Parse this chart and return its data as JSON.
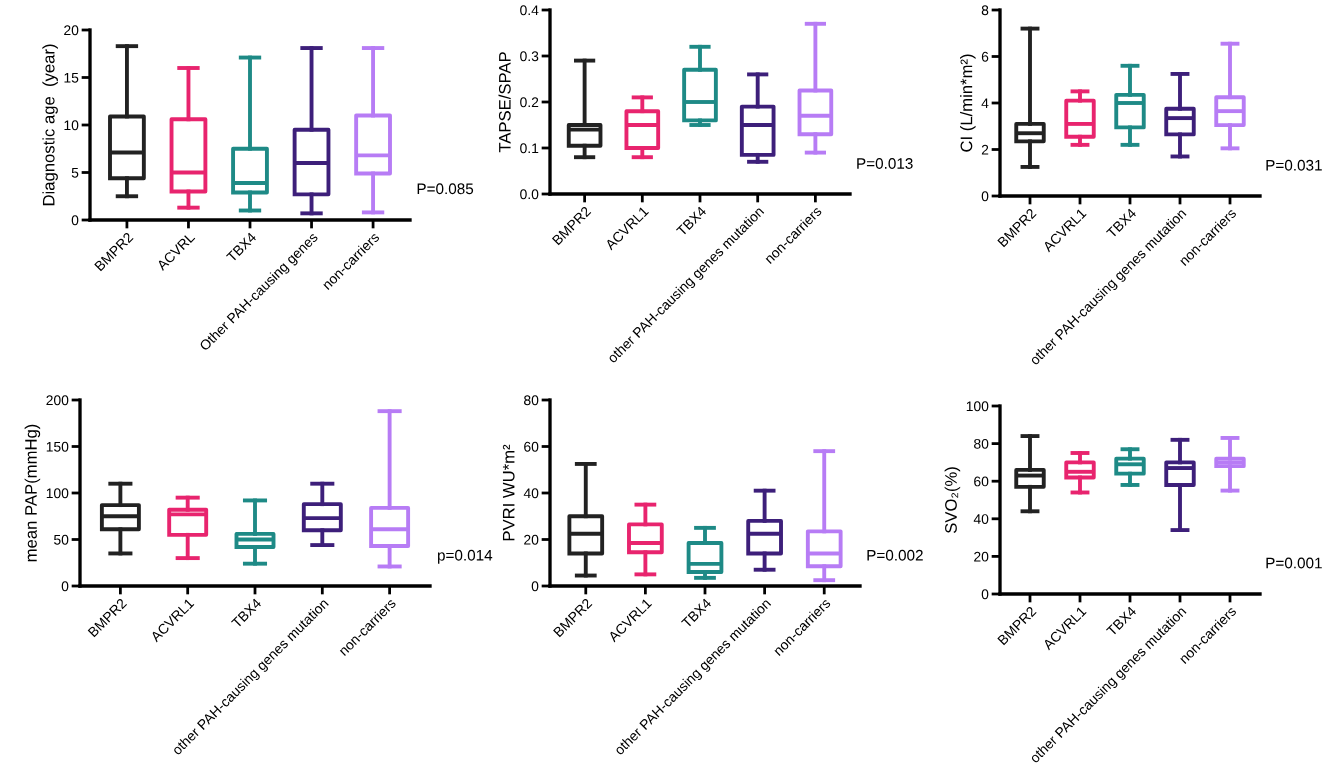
{
  "chart_data": [
    {
      "type": "box",
      "ylabel": "Diagnostic age  (year)",
      "categories": [
        "BMPR2",
        "ACVRL",
        "TBX4",
        "Other PAH-causing genes",
        "non-carriers"
      ],
      "colors": [
        "#222222",
        "#e8246e",
        "#1e8a86",
        "#3d1f7a",
        "#b77cf5"
      ],
      "ylim": [
        0,
        20
      ],
      "yticks": [
        0,
        5,
        10,
        15,
        20
      ],
      "annotations": [
        "P=0.085"
      ],
      "boxes": [
        {
          "low": 2.5,
          "q1": 4.4,
          "median": 7.1,
          "q3": 10.9,
          "high": 18.3
        },
        {
          "low": 1.3,
          "q1": 3.0,
          "median": 5.0,
          "q3": 10.6,
          "high": 16.0
        },
        {
          "low": 1.0,
          "q1": 2.9,
          "median": 3.9,
          "q3": 7.5,
          "high": 17.1
        },
        {
          "low": 0.7,
          "q1": 2.7,
          "median": 6.0,
          "q3": 9.5,
          "high": 18.1
        },
        {
          "low": 0.8,
          "q1": 4.9,
          "median": 6.8,
          "q3": 11.0,
          "high": 18.1
        }
      ]
    },
    {
      "type": "box",
      "ylabel": "TAPSE/SPAP",
      "categories": [
        "BMPR2",
        "ACVRL1",
        "TBX4",
        "other PAH-causing genes mutation",
        "non-carriers"
      ],
      "colors": [
        "#222222",
        "#e8246e",
        "#1e8a86",
        "#3d1f7a",
        "#b77cf5"
      ],
      "ylim": [
        0,
        0.4
      ],
      "yticks": [
        {
          "value": 0,
          "label": "0.0"
        },
        0.1,
        0.2,
        0.3,
        0.4
      ],
      "annotations": [
        "P=0.013"
      ],
      "boxes": [
        {
          "low": 0.08,
          "q1": 0.105,
          "median": 0.14,
          "q3": 0.15,
          "high": 0.29
        },
        {
          "low": 0.08,
          "q1": 0.1,
          "median": 0.15,
          "q3": 0.18,
          "high": 0.21
        },
        {
          "low": 0.15,
          "q1": 0.16,
          "median": 0.2,
          "q3": 0.27,
          "high": 0.32
        },
        {
          "low": 0.07,
          "q1": 0.085,
          "median": 0.15,
          "q3": 0.19,
          "high": 0.26
        },
        {
          "low": 0.09,
          "q1": 0.13,
          "median": 0.17,
          "q3": 0.225,
          "high": 0.37
        }
      ]
    },
    {
      "type": "box",
      "ylabel": "CI (L/min*m²)",
      "categories": [
        "BMPR2",
        "ACVRL1",
        "TBX4",
        "other PAH-causing genes mutation",
        "non-carriers"
      ],
      "colors": [
        "#222222",
        "#e8246e",
        "#1e8a86",
        "#3d1f7a",
        "#b77cf5"
      ],
      "ylim": [
        0,
        8
      ],
      "yticks": [
        0,
        2,
        4,
        6,
        8
      ],
      "annotations": [
        "P=0.031"
      ],
      "boxes": [
        {
          "low": 1.25,
          "q1": 2.35,
          "median": 2.7,
          "q3": 3.1,
          "high": 7.2
        },
        {
          "low": 2.2,
          "q1": 2.55,
          "median": 3.1,
          "q3": 4.1,
          "high": 4.5
        },
        {
          "low": 2.2,
          "q1": 2.95,
          "median": 4.0,
          "q3": 4.35,
          "high": 5.6
        },
        {
          "low": 1.7,
          "q1": 2.65,
          "median": 3.35,
          "q3": 3.75,
          "high": 5.25
        },
        {
          "low": 2.05,
          "q1": 3.05,
          "median": 3.65,
          "q3": 4.25,
          "high": 6.55
        }
      ]
    },
    {
      "type": "box",
      "ylabel": "mean PAP(mmHg)",
      "categories": [
        "BMPR2",
        "ACVRL1",
        "TBX4",
        "other PAH-causing genes mutation",
        "non-carriers"
      ],
      "colors": [
        "#222222",
        "#e8246e",
        "#1e8a86",
        "#3d1f7a",
        "#b77cf5"
      ],
      "ylim": [
        0,
        200
      ],
      "yticks": [
        0,
        50,
        100,
        150,
        200
      ],
      "annotations": [
        "p=0.014"
      ],
      "boxes": [
        {
          "low": 35,
          "q1": 61,
          "median": 75,
          "q3": 87,
          "high": 110
        },
        {
          "low": 30,
          "q1": 55,
          "median": 77,
          "q3": 82,
          "high": 95
        },
        {
          "low": 24,
          "q1": 42,
          "median": 50,
          "q3": 56,
          "high": 92
        },
        {
          "low": 44,
          "q1": 60,
          "median": 73,
          "q3": 88,
          "high": 110
        },
        {
          "low": 21,
          "q1": 43,
          "median": 61,
          "q3": 84,
          "high": 188
        }
      ]
    },
    {
      "type": "box",
      "ylabel": "PVRI WU*m²",
      "categories": [
        "BMPR2",
        "ACVRL1",
        "TBX4",
        "other PAH-causing genes mutation",
        "non-carriers"
      ],
      "colors": [
        "#222222",
        "#e8246e",
        "#1e8a86",
        "#3d1f7a",
        "#b77cf5"
      ],
      "ylim": [
        0,
        80
      ],
      "yticks": [
        0,
        20,
        40,
        60,
        80
      ],
      "annotations": [
        "P=0.002"
      ],
      "boxes": [
        {
          "low": 4.5,
          "q1": 14,
          "median": 22.5,
          "q3": 30,
          "high": 52.5
        },
        {
          "low": 5,
          "q1": 14.5,
          "median": 18.5,
          "q3": 26.5,
          "high": 35
        },
        {
          "low": 3.5,
          "q1": 6,
          "median": 9.5,
          "q3": 18.5,
          "high": 25
        },
        {
          "low": 7,
          "q1": 14,
          "median": 22.5,
          "q3": 28,
          "high": 41
        },
        {
          "low": 2.5,
          "q1": 8.5,
          "median": 14,
          "q3": 23.5,
          "high": 58
        }
      ]
    },
    {
      "type": "box",
      "ylabel": "SVO₂(%)",
      "categories": [
        "BMPR2",
        "ACVRL1",
        "TBX4",
        "other PAH-causing genes mutation",
        "non-carriers"
      ],
      "colors": [
        "#222222",
        "#e8246e",
        "#1e8a86",
        "#3d1f7a",
        "#b77cf5"
      ],
      "ylim": [
        0,
        100
      ],
      "yticks": [
        0,
        20,
        40,
        60,
        80,
        100
      ],
      "annotations": [
        "P=0.001"
      ],
      "boxes": [
        {
          "low": 44,
          "q1": 57,
          "median": 63,
          "q3": 66,
          "high": 84
        },
        {
          "low": 54,
          "q1": 62,
          "median": 65,
          "q3": 70,
          "high": 75
        },
        {
          "low": 58,
          "q1": 64,
          "median": 69,
          "q3": 72,
          "high": 77
        },
        {
          "low": 34,
          "q1": 58,
          "median": 67,
          "q3": 70,
          "high": 82
        },
        {
          "low": 55,
          "q1": 68,
          "median": 70,
          "q3": 72,
          "high": 83
        }
      ]
    }
  ]
}
